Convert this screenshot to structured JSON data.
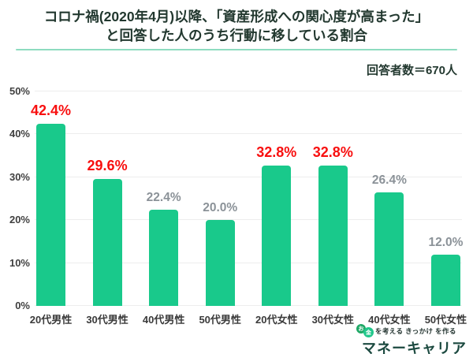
{
  "page": {
    "title_line1": "コロナ禍(2020年4月)以降、「資産形成への関心度が高まった」",
    "title_line2": "と回答した人のうち行動に移している割合",
    "respondents": "回答者数＝670人"
  },
  "chart_data": {
    "type": "bar",
    "title": "コロナ禍(2020年4月)以降、「資産形成への関心度が高まった」と回答した人のうち行動に移している割合",
    "subtitle": "回答者数＝670人",
    "categories": [
      "20代男性",
      "30代男性",
      "40代男性",
      "50代男性",
      "20代女性",
      "30代女性",
      "40代女性",
      "50代女性"
    ],
    "values": [
      42.4,
      29.6,
      22.4,
      20.0,
      32.8,
      32.8,
      26.4,
      12.0
    ],
    "value_labels": [
      "42.4%",
      "29.6%",
      "22.4%",
      "20.0%",
      "32.8%",
      "32.8%",
      "26.4%",
      "12.0%"
    ],
    "highlighted": [
      true,
      true,
      false,
      false,
      true,
      true,
      false,
      false
    ],
    "yticks": [
      0,
      10,
      20,
      30,
      40,
      50
    ],
    "ytick_labels": [
      "0%",
      "10%",
      "20%",
      "30%",
      "40%",
      "50%"
    ],
    "ylim": [
      0,
      50
    ],
    "xlabel": "",
    "ylabel": "",
    "grid": true,
    "legend_position": "none",
    "bar_color": "#19c98b",
    "highlight_value_color": "#f80f0f",
    "normal_value_color": "#8b9298"
  },
  "logo": {
    "badge_char_1": "お",
    "badge_char_2": "金",
    "tagline": "を考える きっかけ を作る",
    "brand": "マネーキャリア"
  }
}
